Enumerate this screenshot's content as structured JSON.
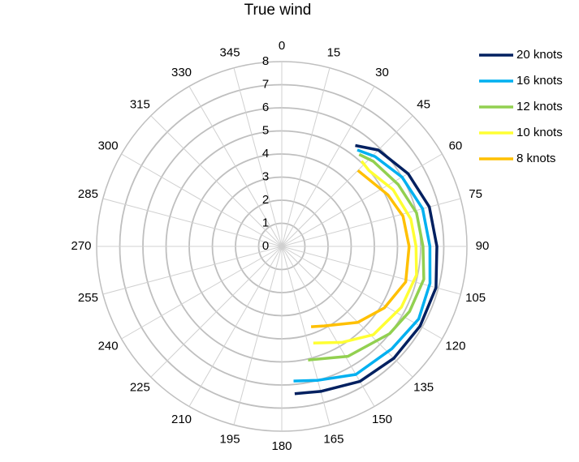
{
  "chart_data": {
    "type": "polar",
    "title": "True wind",
    "thetalim": [
      0,
      360
    ],
    "thetaticks": [
      0,
      15,
      30,
      45,
      60,
      75,
      90,
      105,
      120,
      135,
      150,
      165,
      180,
      195,
      210,
      225,
      240,
      255,
      270,
      285,
      300,
      315,
      330,
      345
    ],
    "rlim": [
      0,
      8
    ],
    "rticks": [
      0,
      1,
      2,
      3,
      4,
      5,
      6,
      7,
      8
    ],
    "grid": true,
    "legend": "right",
    "series": [
      {
        "name": "20 knots",
        "color": "#002060",
        "theta": [
          36,
          45,
          60,
          75,
          90,
          105,
          120,
          135,
          150,
          165,
          175
        ],
        "r": [
          5.4,
          5.9,
          6.3,
          6.6,
          6.7,
          6.9,
          6.9,
          6.85,
          6.75,
          6.5,
          6.4
        ]
      },
      {
        "name": "16 knots",
        "color": "#00b0f0",
        "theta": [
          38,
          46,
          60,
          75,
          90,
          104,
          118,
          133,
          150,
          165,
          175
        ],
        "r": [
          5.3,
          5.6,
          6.0,
          6.3,
          6.4,
          6.6,
          6.7,
          6.5,
          6.4,
          6.0,
          5.85
        ]
      },
      {
        "name": "12 knots",
        "color": "#92d050",
        "theta": [
          40,
          47,
          62,
          76,
          90,
          103,
          117,
          129,
          149,
          167
        ],
        "r": [
          5.2,
          5.4,
          5.7,
          6.0,
          6.1,
          6.3,
          6.2,
          6.0,
          5.55,
          5.05
        ]
      },
      {
        "name": "10 knots",
        "color": "#ffff33",
        "theta": [
          43,
          49,
          63,
          78,
          90,
          102,
          117,
          134,
          148,
          162
        ],
        "r": [
          5.05,
          5.0,
          5.4,
          5.7,
          5.8,
          5.95,
          5.8,
          5.5,
          4.9,
          4.4
        ]
      },
      {
        "name": "8 knots",
        "color": "#ffc000",
        "theta": [
          45,
          64,
          76,
          90,
          106,
          121,
          135,
          152,
          160
        ],
        "r": [
          4.65,
          5.1,
          5.4,
          5.5,
          5.57,
          5.17,
          4.65,
          3.9,
          3.7
        ]
      }
    ]
  }
}
